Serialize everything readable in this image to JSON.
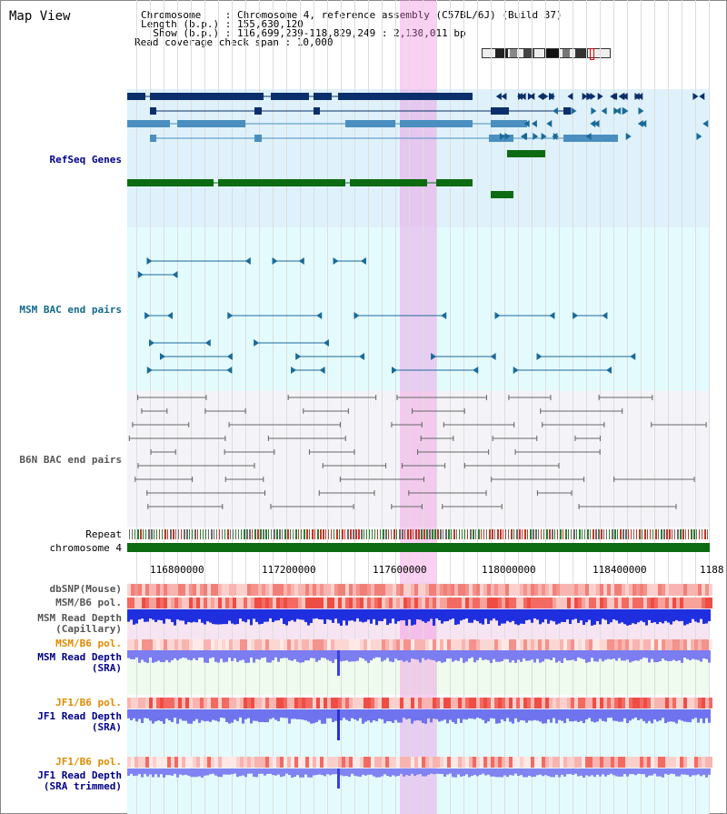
{
  "header": {
    "title": "Map View",
    "info_lines": [
      "Chromosome    : Chromosome 4, reference assembly (C57BL/6J) (Build 37)",
      "Length (b.p.) : 155,630,120",
      "  Show (b.p.) : 116,699,239-118,829,249 : 2,130,011 bp",
      "Read coverage check span : 10,000"
    ]
  },
  "tracks": {
    "refseq": "RefSeq Genes",
    "msm_bac": "MSM BAC end pairs",
    "b6n_bac": "B6N BAC end pairs",
    "repeat": "Repeat",
    "chromosome": "chromosome 4",
    "dbsnp": "dbSNP(Mouse)",
    "msm_b6_pol": "MSM/B6 pol.",
    "msm_depth_cap": "MSM Read Depth\n(Capillary)",
    "msm_b6_pol2": "MSM/B6 pol.",
    "msm_depth_sra": "MSM Read Depth\n(SRA)",
    "jf1_b6_pol": "JF1/B6 pol.",
    "jf1_depth_sra": "JF1 Read Depth\n(SRA)",
    "jf1_b6_pol2": "JF1/B6 pol.",
    "jf1_depth_trim": "JF1 Read Depth\n(SRA trimmed)"
  },
  "axis_ticks": [
    "116800000",
    "117200000",
    "117600000",
    "118000000",
    "118400000",
    "1188"
  ],
  "colors": {
    "refseq_bg": "#dff2fb",
    "msm_bg": "#e4fbfd",
    "b6n_bg": "#f4f4f8",
    "navy": "#0b2f6b",
    "blue": "#4a8fbf",
    "green": "#0d6b12",
    "teal": "#1a6a9a",
    "gray": "#666666",
    "label_blue": "#00008b",
    "label_teal": "#13698a",
    "label_gray": "#555555",
    "label_orange": "#e08a00"
  }
}
